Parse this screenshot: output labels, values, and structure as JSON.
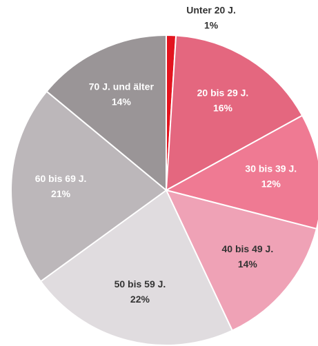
{
  "chart_data": {
    "type": "pie",
    "categories": [
      "Unter 20 J.",
      "20 bis 29 J.",
      "30 bis 39 J.",
      "40 bis 49 J.",
      "50 bis 59 J.",
      "60 bis 69 J.",
      "70 J. und älter"
    ],
    "values": [
      1,
      16,
      12,
      14,
      22,
      21,
      14
    ],
    "value_labels": [
      "1%",
      "16%",
      "12%",
      "14%",
      "22%",
      "21%",
      "14%"
    ],
    "colors": [
      "#e3141f",
      "#e4677f",
      "#ef7a93",
      "#efa2b6",
      "#e0dcdf",
      "#bcb7ba",
      "#9a9597"
    ]
  }
}
